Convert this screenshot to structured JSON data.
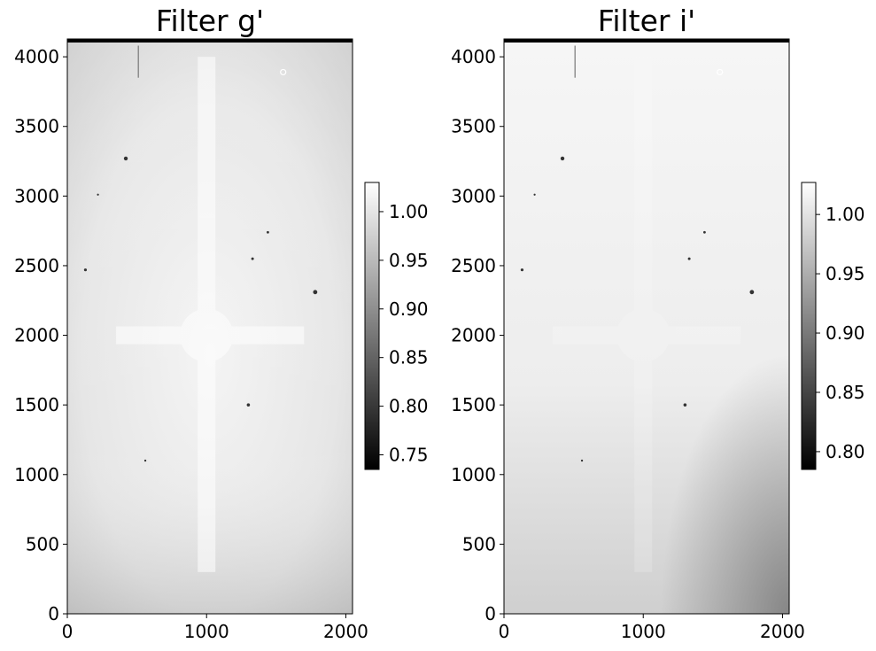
{
  "chart_data": [
    {
      "type": "heatmap",
      "title": "Filter g'",
      "colormap": "gray",
      "xlim": [
        0,
        2048
      ],
      "ylim": [
        0,
        4128
      ],
      "x_ticks": [
        0,
        1000,
        2000
      ],
      "y_ticks": [
        0,
        500,
        1000,
        1500,
        2000,
        2500,
        3000,
        3500,
        4000
      ],
      "colorbar": {
        "min": 0.735,
        "max": 1.03,
        "ticks": [
          0.75,
          0.8,
          0.85,
          0.9,
          0.95,
          1.0
        ]
      }
    },
    {
      "type": "heatmap",
      "title": "Filter i'",
      "colormap": "gray",
      "xlim": [
        0,
        2048
      ],
      "ylim": [
        0,
        4128
      ],
      "x_ticks": [
        0,
        1000,
        2000
      ],
      "y_ticks": [
        0,
        500,
        1000,
        1500,
        2000,
        2500,
        3000,
        3500,
        4000
      ],
      "colorbar": {
        "min": 0.785,
        "max": 1.027,
        "ticks": [
          0.8,
          0.85,
          0.9,
          0.95,
          1.0
        ]
      }
    }
  ]
}
